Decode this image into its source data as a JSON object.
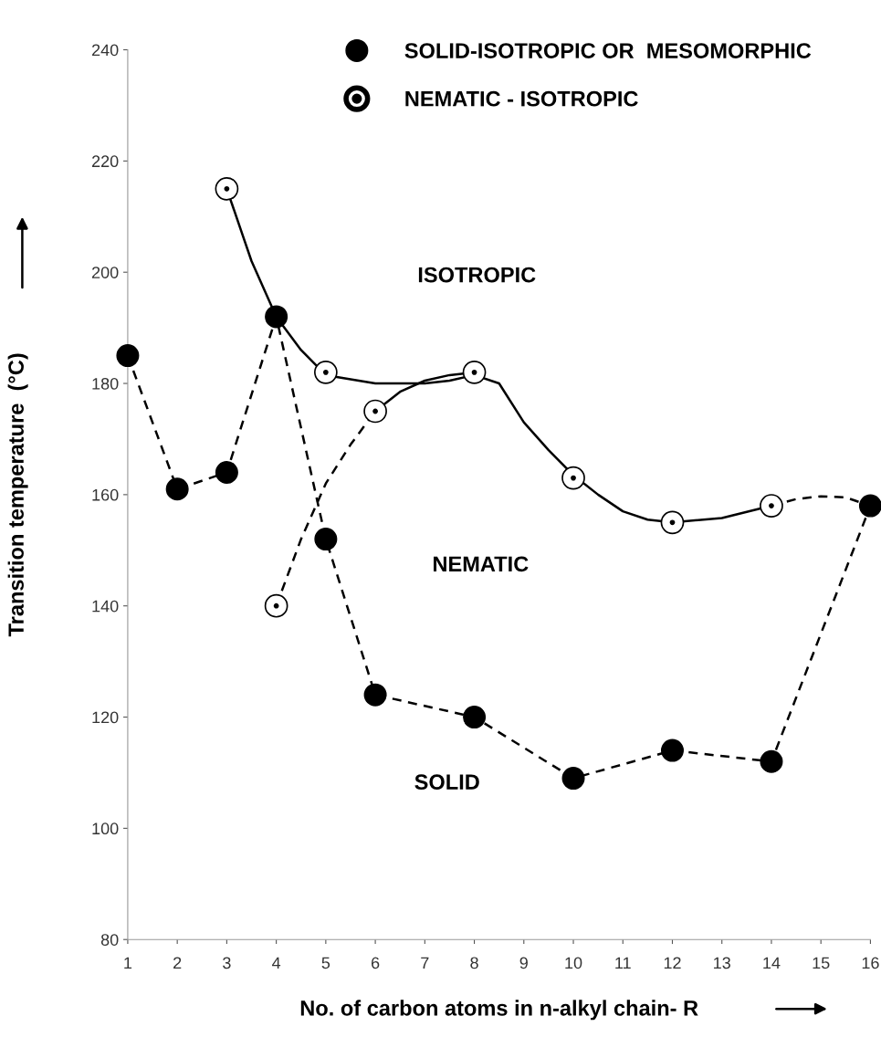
{
  "chart_data": {
    "type": "line",
    "xlabel": "No. of carbon atoms in n-alkyl chain- R",
    "ylabel": "Transition temperature  (°C)",
    "xlim": [
      1,
      16
    ],
    "xticks": [
      1,
      2,
      3,
      4,
      5,
      6,
      7,
      8,
      9,
      10,
      11,
      12,
      13,
      14,
      15,
      16
    ],
    "ylim": [
      80,
      240
    ],
    "yticks": [
      80,
      100,
      120,
      140,
      160,
      180,
      200,
      220,
      240
    ],
    "grid": false,
    "legend": "top",
    "series": [
      {
        "name": "SOLID-ISOTROPIC OR  MESOMORPHIC",
        "marker": "circle",
        "line_style": "dashed",
        "color": "#000000",
        "x": [
          1,
          2,
          3,
          4,
          5,
          6,
          8,
          10,
          12,
          14,
          16
        ],
        "values": [
          185,
          161,
          164,
          192,
          152,
          124,
          120,
          109,
          114,
          112,
          158
        ]
      },
      {
        "name": "NEMATIC - ISOTROPIC",
        "type": "scatter",
        "marker": "circle",
        "color": "#000000",
        "x": [
          3,
          4,
          5,
          6,
          8,
          10,
          12,
          14
        ],
        "values": [
          215,
          140,
          182,
          175,
          182,
          163,
          155,
          158
        ]
      },
      {
        "type": "line",
        "marker": "none",
        "line_style": "solid",
        "color": "#000000",
        "x": [
          3,
          3.5,
          4,
          4.5,
          5,
          6,
          7,
          7.5,
          8,
          8.5,
          9,
          9.5,
          10,
          10.5,
          11,
          11.5,
          12,
          13,
          14
        ],
        "values": [
          215,
          202,
          192,
          186,
          181.5,
          180,
          180,
          180.5,
          181.5,
          180,
          173,
          168,
          163.5,
          160,
          157,
          155.5,
          155,
          155.8,
          158
        ]
      },
      {
        "type": "line",
        "marker": "none",
        "line_style": "dashed",
        "color": "#000000",
        "x": [
          4,
          4.5,
          5,
          5.5,
          6
        ],
        "values": [
          140,
          152,
          162,
          169,
          175
        ]
      },
      {
        "type": "line",
        "marker": "none",
        "line_style": "solid",
        "color": "#000000",
        "x": [
          6,
          6.5,
          7,
          7.5,
          8
        ],
        "values": [
          175,
          178.5,
          180.5,
          181.5,
          182
        ]
      },
      {
        "type": "line",
        "marker": "none",
        "line_style": "dashed",
        "color": "#000000",
        "x": [
          14,
          14.5,
          15,
          15.5,
          16
        ],
        "values": [
          158,
          159.2,
          159.7,
          159.5,
          158
        ]
      }
    ],
    "annotations": [
      "ISOTROPIC",
      "NEMATIC",
      "SOLID"
    ]
  }
}
